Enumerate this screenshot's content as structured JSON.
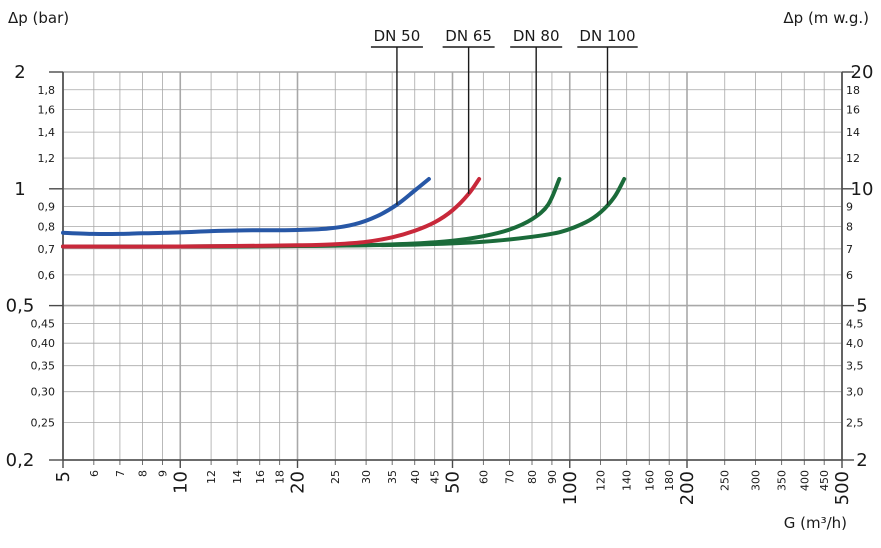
{
  "axis_titles": {
    "left": "Δp (bar)",
    "right": "Δp (m w.g.)",
    "x": "G (m³/h)"
  },
  "colors": {
    "grid": "#a8a8a8",
    "grid_minor": "#d0d0d0",
    "axis": "#4a4a4a",
    "DN 50": "#2757a6",
    "DN 65": "#c8283a",
    "DN 80": "#1b6b3a",
    "DN 100": "#1b6b3a"
  },
  "chart_data": {
    "type": "line",
    "x_scale": "log",
    "y_scale": "log",
    "xlim": [
      5,
      500
    ],
    "ylim": [
      0.2,
      2
    ],
    "grid": "on",
    "x_ticks_major": [
      5,
      10,
      20,
      50,
      100,
      200,
      500
    ],
    "x_tick_labels_major": [
      "5",
      "10",
      "20",
      "50",
      "100",
      "200",
      "500"
    ],
    "x_ticks_minor": [
      6,
      7,
      8,
      9,
      12,
      14,
      16,
      18,
      25,
      30,
      35,
      40,
      45,
      60,
      70,
      80,
      90,
      120,
      140,
      160,
      180,
      250,
      300,
      350,
      400,
      450
    ],
    "x_tick_labels_minor": [
      "6",
      "7",
      "8",
      "9",
      "12",
      "14",
      "16",
      "18",
      "25",
      "30",
      "35",
      "40",
      "45",
      "60",
      "70",
      "80",
      "90",
      "120",
      "140",
      "160",
      "180",
      "250",
      "300",
      "350",
      "400",
      "450"
    ],
    "y_ticks_major": [
      0.2,
      0.5,
      1,
      2
    ],
    "y_tick_labels_major": [
      "0,2",
      "0,5",
      "1",
      "2"
    ],
    "y_ticks_minor": [
      0.25,
      0.3,
      0.35,
      0.4,
      0.45,
      0.6,
      0.7,
      0.8,
      0.9,
      1.2,
      1.4,
      1.6,
      1.8
    ],
    "y_tick_labels_minor": [
      "0,25",
      "0,30",
      "0,35",
      "0,40",
      "0,45",
      "0,6",
      "0,7",
      "0,8",
      "0,9",
      "1,2",
      "1,4",
      "1,6",
      "1,8"
    ],
    "y2_ticks_major": [
      0.2,
      0.5,
      1,
      2
    ],
    "y2_tick_labels_major": [
      "2",
      "5",
      "10",
      "20"
    ],
    "y2_ticks_minor": [
      0.25,
      0.3,
      0.35,
      0.4,
      0.45,
      0.6,
      0.7,
      0.8,
      0.9,
      1.2,
      1.4,
      1.6,
      1.8
    ],
    "y2_tick_labels_minor": [
      "2,5",
      "3,0",
      "3,5",
      "4,0",
      "4,5",
      "6",
      "7",
      "8",
      "9",
      "12",
      "14",
      "16",
      "18"
    ],
    "series": [
      {
        "name": "DN 50",
        "x": [
          5,
          6,
          7,
          8,
          10,
          12,
          14,
          16,
          18,
          20,
          24,
          28,
          32,
          36,
          40,
          43.5
        ],
        "y": [
          0.77,
          0.765,
          0.765,
          0.768,
          0.772,
          0.778,
          0.781,
          0.782,
          0.782,
          0.783,
          0.79,
          0.81,
          0.85,
          0.91,
          0.99,
          1.06
        ]
      },
      {
        "name": "DN 65",
        "x": [
          5,
          10,
          20,
          25,
          30,
          35,
          40,
          45,
          50,
          55,
          58.5
        ],
        "y": [
          0.71,
          0.71,
          0.715,
          0.72,
          0.73,
          0.75,
          0.78,
          0.82,
          0.88,
          0.97,
          1.06
        ]
      },
      {
        "name": "DN 80",
        "x": [
          5,
          10,
          20,
          30,
          40,
          50,
          60,
          70,
          80,
          88,
          94
        ],
        "y": [
          0.71,
          0.71,
          0.712,
          0.716,
          0.723,
          0.735,
          0.755,
          0.785,
          0.835,
          0.91,
          1.06
        ]
      },
      {
        "name": "DN 100",
        "x": [
          5,
          10,
          20,
          40,
          60,
          80,
          95,
          110,
          120,
          130,
          138
        ],
        "y": [
          0.71,
          0.71,
          0.712,
          0.718,
          0.73,
          0.752,
          0.775,
          0.82,
          0.87,
          0.95,
          1.06
        ]
      }
    ],
    "annotations": [
      {
        "label": "DN 50",
        "target_series": "DN 50",
        "target_x": 36
      },
      {
        "label": "DN 65",
        "target_series": "DN 65",
        "target_x": 55
      },
      {
        "label": "DN 80",
        "target_series": "DN 80",
        "target_x": 82
      },
      {
        "label": "DN 100",
        "target_series": "DN 100",
        "target_x": 125
      }
    ]
  }
}
